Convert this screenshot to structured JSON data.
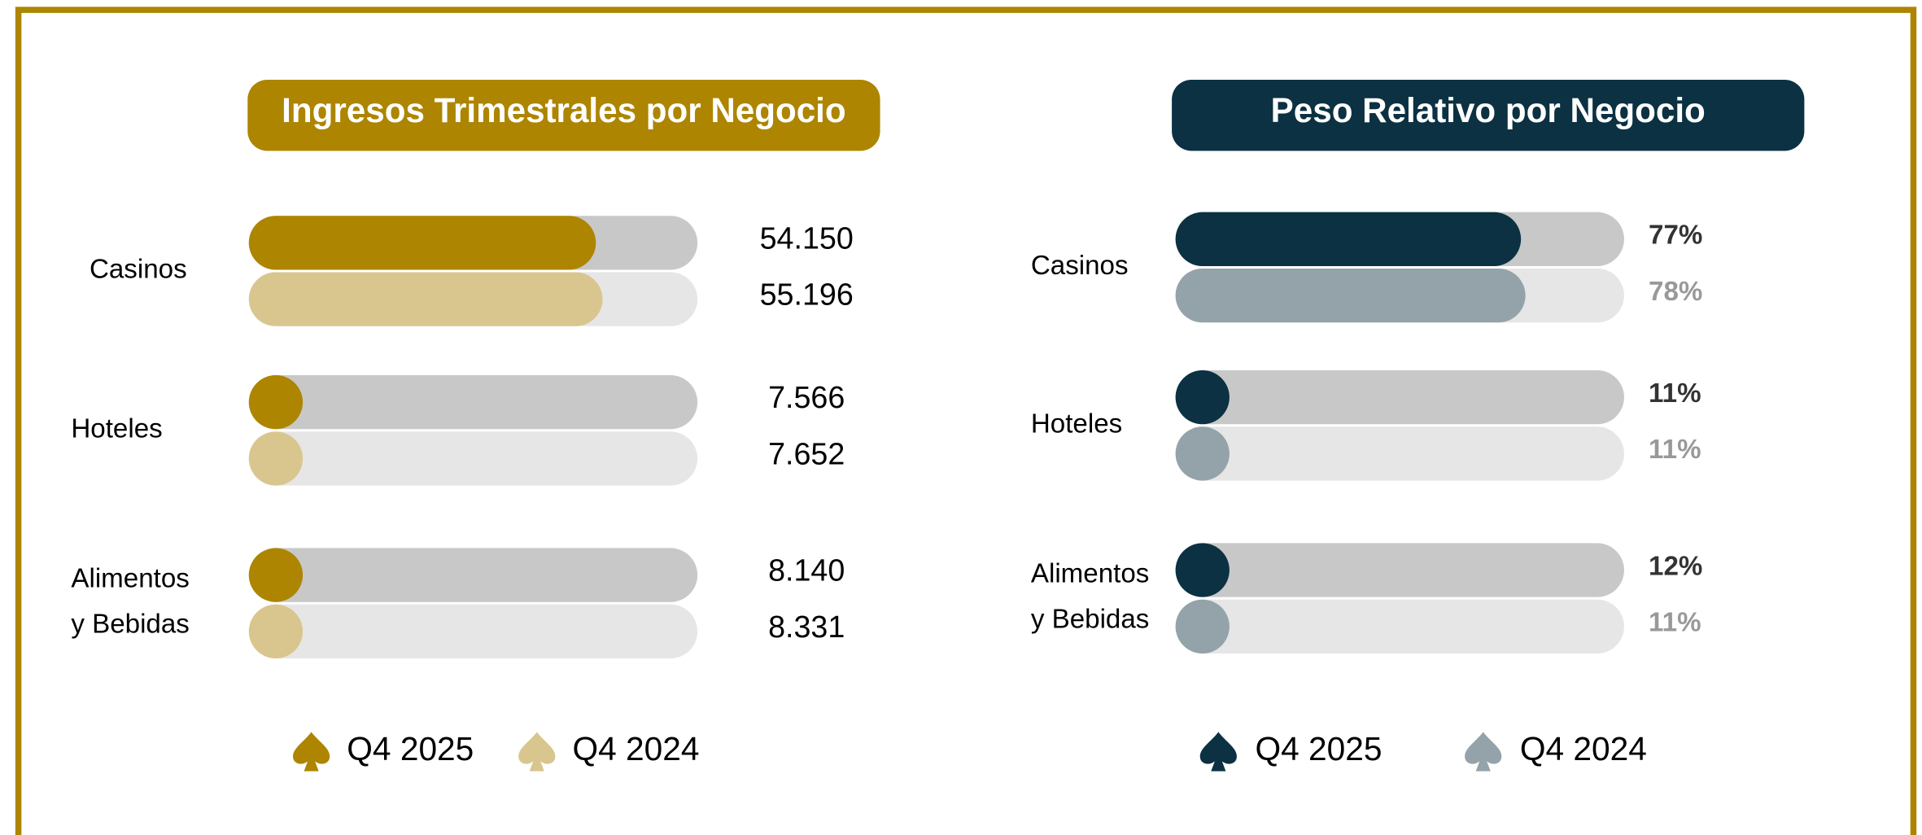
{
  "chart_data": [
    {
      "type": "bar",
      "title": "Ingresos Trimestrales por Negocio",
      "categories": [
        "Casinos",
        "Hoteles",
        "Alimentos y Bebidas"
      ],
      "series": [
        {
          "name": "Q4 2025",
          "color": "#ad8500",
          "values": [
            54150,
            7566,
            8140
          ],
          "value_labels": [
            "54.150",
            "7.566",
            "8.140"
          ]
        },
        {
          "name": "Q4 2024",
          "color": "#d9c68f",
          "values": [
            55196,
            7652,
            8331
          ],
          "value_labels": [
            "55.196",
            "7.652",
            "8.331"
          ]
        }
      ],
      "xlim": [
        0,
        70000
      ],
      "title_color": "#ad8500"
    },
    {
      "type": "bar",
      "title": "Peso Relativo por Negocio",
      "categories": [
        "Casinos",
        "Hoteles",
        "Alimentos y Bebidas"
      ],
      "series": [
        {
          "name": "Q4 2025",
          "color": "#0b3142",
          "values": [
            77,
            11,
            12
          ],
          "value_labels": [
            "77%",
            "11%",
            "12%"
          ]
        },
        {
          "name": "Q4 2024",
          "color": "#94a3aa",
          "values": [
            78,
            11,
            11
          ],
          "value_labels": [
            "78%",
            "11%",
            "11%"
          ]
        }
      ],
      "xlim": [
        0,
        100
      ],
      "title_color": "#0b3142"
    }
  ]
}
